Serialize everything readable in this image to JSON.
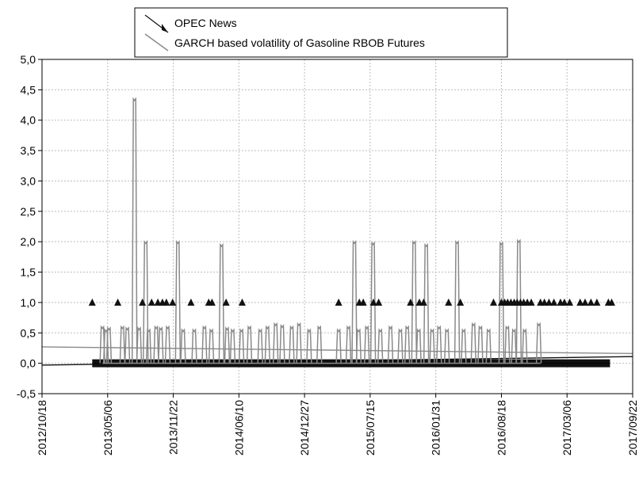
{
  "chart_data": {
    "type": "line",
    "title": "",
    "xlabel": "",
    "ylabel": "",
    "legend_position": "top-center",
    "grid": true,
    "colors": {
      "opec": "#111111",
      "garch": "#8a8a8a",
      "grid": "#bdbdbd",
      "axis": "#000000"
    },
    "x_range": [
      "2012-10-18",
      "2017-09-22"
    ],
    "ylim": [
      -0.5,
      5.0
    ],
    "x_ticks": [
      "2012/10/18",
      "2013/05/06",
      "2013/11/22",
      "2014/06/10",
      "2014/12/27",
      "2015/07/15",
      "2016/01/31",
      "2016/08/18",
      "2017/03/06",
      "2017/09/22"
    ],
    "y_ticks": [
      "-0,5",
      "0,0",
      "0,5",
      "1,0",
      "1,5",
      "2,0",
      "2,5",
      "3,0",
      "3,5",
      "4,0",
      "4,5",
      "5,0"
    ],
    "legend": [
      "OPEC News",
      "GARCH based volatility of Gasoline RBOB Futures"
    ],
    "series": [
      {
        "name": "OPEC News",
        "style": "triangle-markers",
        "baseline": 0.0,
        "baseline_range": [
          "2013-03-20",
          "2017-07-15"
        ],
        "event_value": 1.0,
        "event_dates": [
          "2013-03-20",
          "2013-06-06",
          "2013-08-20",
          "2013-09-17",
          "2013-10-06",
          "2013-10-20",
          "2013-11-01",
          "2013-11-20",
          "2014-01-15",
          "2014-03-10",
          "2014-03-20",
          "2014-05-02",
          "2014-06-20",
          "2015-04-10",
          "2015-06-12",
          "2015-06-24",
          "2015-07-25",
          "2015-08-10",
          "2015-11-15",
          "2015-12-12",
          "2015-12-25",
          "2016-03-10",
          "2016-04-15",
          "2016-07-25",
          "2016-08-18",
          "2016-08-28",
          "2016-09-06",
          "2016-09-16",
          "2016-09-26",
          "2016-10-05",
          "2016-10-15",
          "2016-10-25",
          "2016-11-05",
          "2016-11-17",
          "2016-12-15",
          "2016-12-27",
          "2017-01-10",
          "2017-01-25",
          "2017-02-14",
          "2017-02-26",
          "2017-03-14",
          "2017-04-15",
          "2017-04-30",
          "2017-05-18",
          "2017-06-05",
          "2017-07-10",
          "2017-07-20"
        ]
      },
      {
        "name": "GARCH based volatility of Gasoline RBOB Futures",
        "style": "spiky-line",
        "baseline": 0.0,
        "range": [
          "2013-04-20",
          "2016-12-15"
        ],
        "spikes": [
          {
            "x": "2013-04-20",
            "y": 0.6
          },
          {
            "x": "2013-05-01",
            "y": 0.55
          },
          {
            "x": "2013-05-10",
            "y": 0.58
          },
          {
            "x": "2013-06-20",
            "y": 0.6
          },
          {
            "x": "2013-07-05",
            "y": 0.58
          },
          {
            "x": "2013-07-27",
            "y": 4.35
          },
          {
            "x": "2013-08-10",
            "y": 0.58
          },
          {
            "x": "2013-08-30",
            "y": 2.0
          },
          {
            "x": "2013-09-08",
            "y": 0.55
          },
          {
            "x": "2013-10-01",
            "y": 0.6
          },
          {
            "x": "2013-10-15",
            "y": 0.58
          },
          {
            "x": "2013-11-05",
            "y": 0.6
          },
          {
            "x": "2013-12-06",
            "y": 2.0
          },
          {
            "x": "2013-12-22",
            "y": 0.55
          },
          {
            "x": "2014-01-25",
            "y": 0.55
          },
          {
            "x": "2014-02-25",
            "y": 0.6
          },
          {
            "x": "2014-03-18",
            "y": 0.55
          },
          {
            "x": "2014-04-18",
            "y": 1.95
          },
          {
            "x": "2014-05-05",
            "y": 0.58
          },
          {
            "x": "2014-05-22",
            "y": 0.55
          },
          {
            "x": "2014-06-18",
            "y": 0.55
          },
          {
            "x": "2014-07-12",
            "y": 0.6
          },
          {
            "x": "2014-08-14",
            "y": 0.55
          },
          {
            "x": "2014-09-05",
            "y": 0.6
          },
          {
            "x": "2014-09-30",
            "y": 0.65
          },
          {
            "x": "2014-10-20",
            "y": 0.62
          },
          {
            "x": "2014-11-18",
            "y": 0.6
          },
          {
            "x": "2014-12-10",
            "y": 0.65
          },
          {
            "x": "2015-01-10",
            "y": 0.55
          },
          {
            "x": "2015-02-10",
            "y": 0.6
          },
          {
            "x": "2015-04-10",
            "y": 0.55
          },
          {
            "x": "2015-05-10",
            "y": 0.6
          },
          {
            "x": "2015-05-28",
            "y": 2.0
          },
          {
            "x": "2015-06-10",
            "y": 0.55
          },
          {
            "x": "2015-07-05",
            "y": 0.6
          },
          {
            "x": "2015-07-24",
            "y": 1.98
          },
          {
            "x": "2015-08-15",
            "y": 0.55
          },
          {
            "x": "2015-09-15",
            "y": 0.6
          },
          {
            "x": "2015-10-15",
            "y": 0.55
          },
          {
            "x": "2015-11-05",
            "y": 0.6
          },
          {
            "x": "2015-11-26",
            "y": 2.0
          },
          {
            "x": "2015-12-10",
            "y": 0.55
          },
          {
            "x": "2016-01-02",
            "y": 1.95
          },
          {
            "x": "2016-01-20",
            "y": 0.55
          },
          {
            "x": "2016-02-10",
            "y": 0.6
          },
          {
            "x": "2016-03-05",
            "y": 0.55
          },
          {
            "x": "2016-04-05",
            "y": 2.0
          },
          {
            "x": "2016-04-25",
            "y": 0.55
          },
          {
            "x": "2016-05-25",
            "y": 0.65
          },
          {
            "x": "2016-06-15",
            "y": 0.6
          },
          {
            "x": "2016-07-10",
            "y": 0.55
          },
          {
            "x": "2016-08-18",
            "y": 1.98
          },
          {
            "x": "2016-09-05",
            "y": 0.6
          },
          {
            "x": "2016-09-25",
            "y": 0.55
          },
          {
            "x": "2016-10-10",
            "y": 2.02
          },
          {
            "x": "2016-10-28",
            "y": 0.55
          },
          {
            "x": "2016-12-10",
            "y": 0.65
          }
        ]
      }
    ],
    "trend_lines": [
      {
        "series": "GARCH based volatility of Gasoline RBOB Futures",
        "x": [
          "2012-10-18",
          "2017-09-22"
        ],
        "y": [
          0.27,
          0.16
        ]
      },
      {
        "series": "OPEC News",
        "x": [
          "2012-10-18",
          "2017-09-22"
        ],
        "y": [
          -0.03,
          0.11
        ]
      }
    ]
  }
}
